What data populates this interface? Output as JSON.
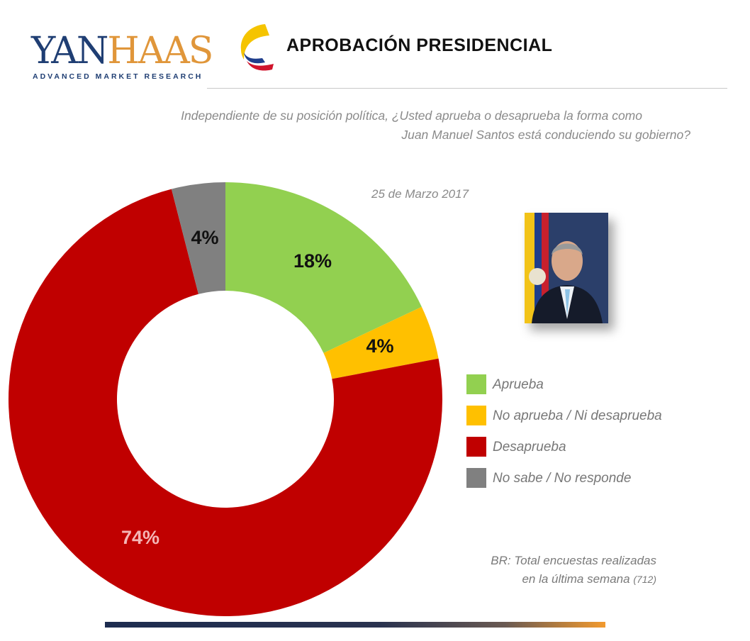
{
  "logo": {
    "main_a": "YAN",
    "main_b": "HAAS",
    "subtitle": "ADVANCED MARKET RESEARCH"
  },
  "header": {
    "title": "APROBACIÓN PRESIDENCIAL",
    "flag_colors": [
      "#f5c400",
      "#1f3e8c",
      "#d0142c"
    ]
  },
  "question": {
    "line1": "Independiente de su posición política, ¿Usted aprueba o desaprueba la forma como",
    "line2": "Juan Manuel Santos está conduciendo su gobierno?"
  },
  "date": "25 de Marzo 2017",
  "note": {
    "line1": "BR: Total encuestas realizadas",
    "line2": "en la última semana",
    "suffix": "(712)"
  },
  "chart_data": {
    "type": "pie",
    "donut": true,
    "categories": [
      "Aprueba",
      "No aprueba / Ni desaprueba",
      "Desaprueba",
      "No sabe /  No responde"
    ],
    "values": [
      18,
      4,
      74,
      4
    ],
    "labels": [
      "18%",
      "4%",
      "74%",
      "4%"
    ],
    "colors": [
      "#92d050",
      "#ffc000",
      "#c00000",
      "#808080"
    ],
    "label_colors": [
      "#111111",
      "#111111",
      "#f4b6b6",
      "#111111"
    ],
    "start": "12 o'clock",
    "direction": "clockwise",
    "legend_position": "right"
  }
}
